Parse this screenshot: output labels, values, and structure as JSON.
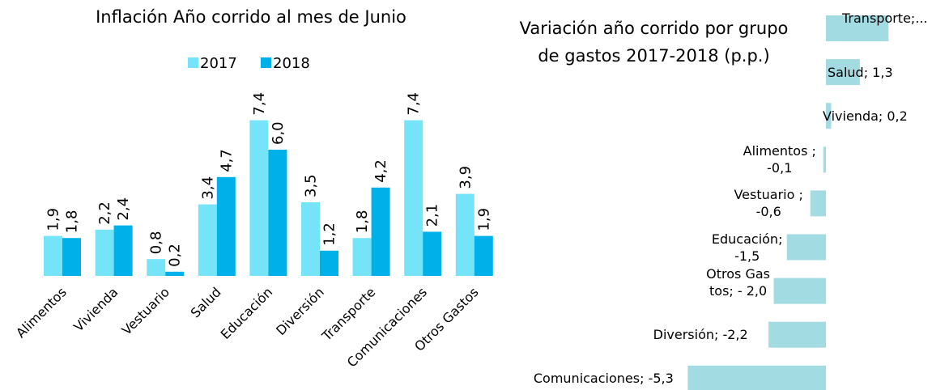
{
  "chart_data": [
    {
      "type": "bar",
      "title": "Inflación Año corrido al mes de Junio",
      "categories": [
        "Alimentos",
        "Vivienda",
        "Vestuario",
        "Salud",
        "Educación",
        "Diversión",
        "Transporte",
        "Comunicaciones",
        "Otros Gastos"
      ],
      "series": [
        {
          "name": "2017",
          "color": "#75e4f8",
          "values": [
            1.9,
            2.2,
            0.8,
            3.4,
            7.4,
            3.5,
            1.8,
            7.4,
            3.9
          ],
          "value_labels": [
            "1,9",
            "2,2",
            "0,8",
            "3,4",
            "7,4",
            "3,5",
            "1,8",
            "7,4",
            "3,9"
          ]
        },
        {
          "name": "2018",
          "color": "#00b0e8",
          "values": [
            1.8,
            2.4,
            0.2,
            4.7,
            6.0,
            1.2,
            4.2,
            2.1,
            1.9
          ],
          "value_labels": [
            "1,8",
            "2,4",
            "0,2",
            "4,7",
            "6,0",
            "1,2",
            "4,2",
            "2,1",
            "1,9"
          ]
        }
      ],
      "legend": "top"
    },
    {
      "type": "hbar",
      "title": "Variación año corrido por grupo de gastos 2017-2018 (p.p.)",
      "color": "#a3dbe3",
      "values": [
        2.4,
        1.3,
        0.2,
        -0.1,
        -0.6,
        -1.5,
        -2.0,
        -2.2,
        -5.3
      ],
      "value_labels": [
        "Transporte;...",
        "Salud; 1,3",
        "Vivienda; 0,2",
        "Alimentos ; -0,1",
        "Vestuario ; -0,6",
        "Educación; -1,5",
        "Otros Gastos; - 2,0",
        "Diversión; -2,2",
        "Comunicaciones; -5,3"
      ]
    }
  ]
}
